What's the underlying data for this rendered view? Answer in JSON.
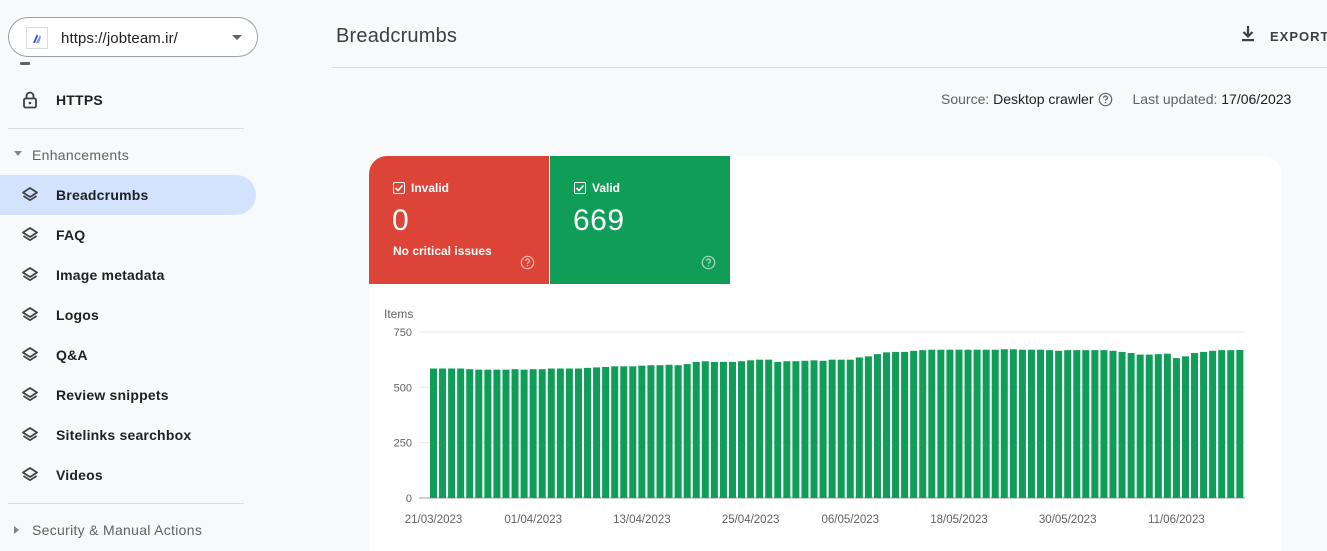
{
  "property": {
    "url": "https://jobteam.ir/"
  },
  "sidebar": {
    "https_label": "HTTPS",
    "enhancements_header": "Enhancements",
    "items": [
      {
        "label": "Breadcrumbs",
        "icon": "layers-icon",
        "selected": true
      },
      {
        "label": "FAQ",
        "icon": "layers-icon"
      },
      {
        "label": "Image metadata",
        "icon": "layers-icon"
      },
      {
        "label": "Logos",
        "icon": "layers-icon"
      },
      {
        "label": "Q&A",
        "icon": "layers-icon"
      },
      {
        "label": "Review snippets",
        "icon": "layers-icon"
      },
      {
        "label": "Sitelinks searchbox",
        "icon": "layers-icon"
      },
      {
        "label": "Videos",
        "icon": "layers-icon"
      }
    ],
    "security_header": "Security & Manual Actions"
  },
  "header": {
    "title": "Breadcrumbs",
    "export_label": "EXPORT"
  },
  "meta": {
    "source_label": "Source:",
    "source_value": "Desktop crawler",
    "updated_label": "Last updated:",
    "updated_value": "17/06/2023"
  },
  "status": {
    "invalid": {
      "label": "Invalid",
      "count": "0",
      "note": "No critical issues",
      "color": "#db4437"
    },
    "valid": {
      "label": "Valid",
      "count": "669",
      "color": "#0f9d58"
    }
  },
  "chart_data": {
    "type": "bar",
    "ylabel": "Items",
    "ylim": [
      0,
      750
    ],
    "yticks": [
      0,
      250,
      500,
      750
    ],
    "color": "#0f9d58",
    "x_tick_labels": [
      "21/03/2023",
      "01/04/2023",
      "13/04/2023",
      "25/04/2023",
      "06/05/2023",
      "18/05/2023",
      "30/05/2023",
      "11/06/2023"
    ],
    "x_tick_indices": [
      0,
      11,
      23,
      35,
      46,
      58,
      70,
      82
    ],
    "start_date": "21/03/2023",
    "values": [
      585,
      585,
      585,
      585,
      582,
      580,
      580,
      580,
      580,
      582,
      580,
      582,
      582,
      585,
      585,
      585,
      585,
      588,
      590,
      592,
      595,
      595,
      595,
      598,
      600,
      600,
      602,
      600,
      605,
      615,
      618,
      615,
      615,
      615,
      618,
      622,
      625,
      625,
      615,
      618,
      618,
      620,
      622,
      620,
      625,
      625,
      625,
      635,
      640,
      650,
      658,
      660,
      660,
      665,
      668,
      670,
      670,
      670,
      670,
      670,
      670,
      670,
      670,
      672,
      672,
      670,
      670,
      670,
      668,
      665,
      668,
      668,
      668,
      668,
      668,
      665,
      660,
      655,
      648,
      648,
      650,
      652,
      632,
      640,
      655,
      660,
      665,
      668,
      668,
      669
    ]
  }
}
